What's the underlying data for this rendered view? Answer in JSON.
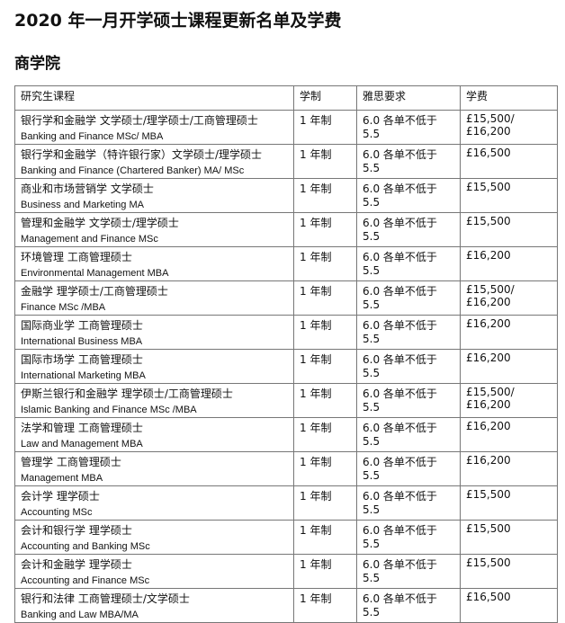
{
  "title": "2020 年一月开学硕士课程更新名单及学费",
  "section": "商学院",
  "headers": [
    "研究生课程",
    "学制",
    "雅思要求",
    "学费"
  ],
  "rows": [
    {
      "cn": "银行学和金融学  文学硕士/理学硕士/工商管理硕士",
      "en": "Banking and Finance MSc/ MBA",
      "duration": "1 年制",
      "ielts": "6.0 各单不低于 5.5",
      "fee": "£15,500/£16,200"
    },
    {
      "cn": "银行学和金融学（特许银行家）文学硕士/理学硕士",
      "en": "Banking and Finance (Chartered Banker) MA/ MSc",
      "duration": "1 年制",
      "ielts": "6.0 各单不低于 5.5",
      "fee": "£16,500"
    },
    {
      "cn": "商业和市场营销学  文学硕士",
      "en": "Business and Marketing MA",
      "duration": "1 年制",
      "ielts": "6.0 各单不低于 5.5",
      "fee": "£15,500"
    },
    {
      "cn": "管理和金融学  文学硕士/理学硕士",
      "en": "Management and Finance MSc",
      "duration": "1 年制",
      "ielts": "6.0 各单不低于 5.5",
      "fee": "£15,500"
    },
    {
      "cn": "环境管理  工商管理硕士",
      "en": "Environmental Management MBA",
      "duration": "1 年制",
      "ielts": "6.0 各单不低于 5.5",
      "fee": "£16,200"
    },
    {
      "cn": "金融学  理学硕士/工商管理硕士",
      "en": "Finance MSc /MBA",
      "duration": "1 年制",
      "ielts": "6.0 各单不低于 5.5",
      "fee": "£15,500/£16,200"
    },
    {
      "cn": "国际商业学  工商管理硕士",
      "en": "International Business MBA",
      "duration": "1 年制",
      "ielts": "6.0 各单不低于 5.5",
      "fee": "£16,200"
    },
    {
      "cn": "国际市场学  工商管理硕士",
      "en": "International Marketing MBA",
      "duration": "1 年制",
      "ielts": "6.0 各单不低于 5.5",
      "fee": "£16,200"
    },
    {
      "cn": "伊斯兰银行和金融学  理学硕士/工商管理硕士",
      "en": "Islamic Banking and Finance MSc /MBA",
      "duration": "1 年制",
      "ielts": "6.0 各单不低于 5.5",
      "fee": "£15,500/£16,200"
    },
    {
      "cn": "法学和管理  工商管理硕士",
      "en": "Law and Management MBA",
      "duration": "1 年制",
      "ielts": "6.0 各单不低于 5.5",
      "fee": "£16,200"
    },
    {
      "cn": "管理学  工商管理硕士",
      "en": "Management MBA",
      "duration": "1 年制",
      "ielts": "6.0 各单不低于 5.5",
      "fee": "£16,200"
    },
    {
      "cn": "会计学  理学硕士",
      "en": "Accounting MSc",
      "duration": "1 年制",
      "ielts": "6.0 各单不低于 5.5",
      "fee": "£15,500"
    },
    {
      "cn": "会计和银行学  理学硕士",
      "en": "Accounting and Banking MSc",
      "duration": "1 年制",
      "ielts": "6.0 各单不低于 5.5",
      "fee": "£15,500"
    },
    {
      "cn": "会计和金融学  理学硕士",
      "en": "Accounting and Finance MSc",
      "duration": "1 年制",
      "ielts": "6.0 各单不低于 5.5",
      "fee": "£15,500"
    },
    {
      "cn": "银行和法律  工商管理硕士/文学硕士",
      "en": "Banking and Law MBA/MA",
      "duration": "1 年制",
      "ielts": "6.0 各单不低于 5.5",
      "fee": "£16,500"
    }
  ]
}
